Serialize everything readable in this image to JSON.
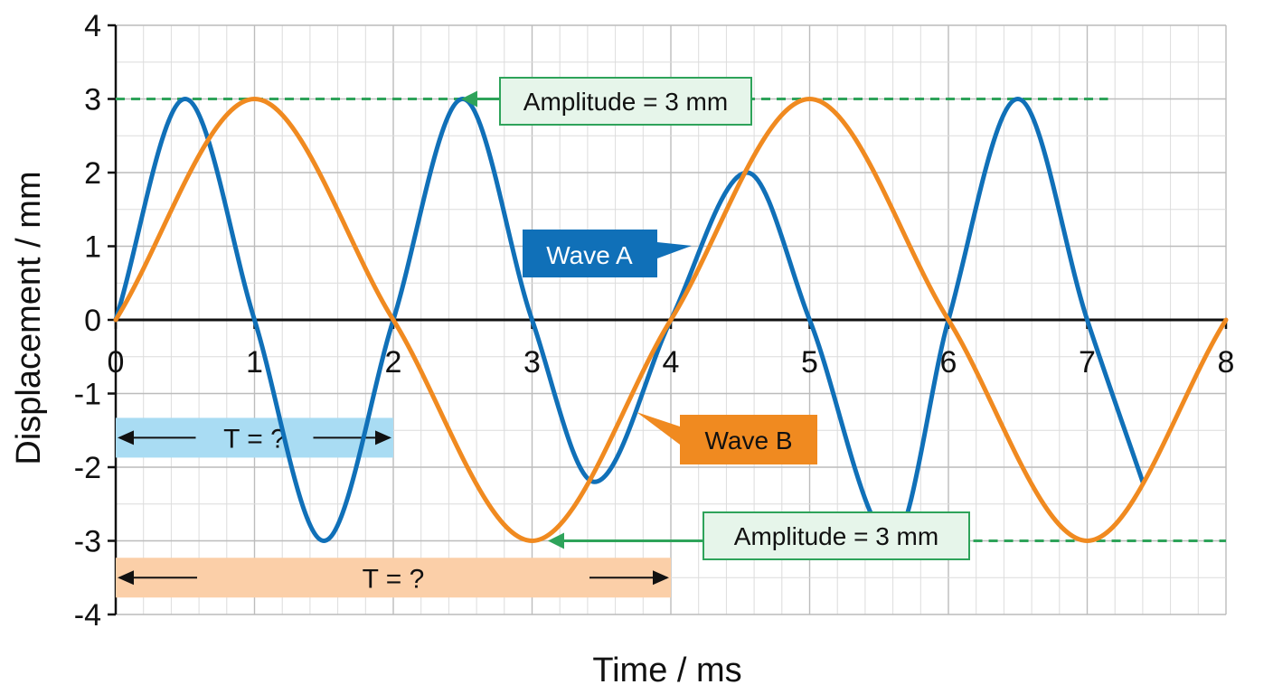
{
  "chart_data": {
    "type": "line",
    "title": "",
    "xlabel": "Time / ms",
    "ylabel": "Displacement / mm",
    "xlim": [
      0,
      8
    ],
    "ylim": [
      -4,
      4
    ],
    "x_ticks": [
      "0",
      "1",
      "2",
      "3",
      "4",
      "5",
      "6",
      "7",
      "8"
    ],
    "y_ticks": [
      "4",
      "3",
      "2",
      "1",
      "0",
      "-1",
      "-2",
      "-3",
      "-4"
    ],
    "grid": true,
    "series": [
      {
        "name": "Wave A",
        "color": "#1070b8",
        "x": [
          0,
          0.5,
          1,
          1.5,
          2,
          2.5,
          3,
          3.45,
          4,
          4.55,
          5,
          5.6,
          6,
          6.5,
          7,
          7.4
        ],
        "y": [
          0,
          3,
          0,
          -3,
          0,
          3,
          0,
          -2.2,
          0,
          2,
          0,
          -3,
          0,
          3,
          0,
          -2.2
        ]
      },
      {
        "name": "Wave B",
        "color": "#f08a20",
        "x": [
          0,
          1,
          2,
          3,
          4,
          5,
          6,
          7,
          8
        ],
        "y": [
          0,
          3,
          0,
          -3,
          0,
          3,
          0,
          -3,
          0
        ]
      }
    ],
    "annotations": {
      "amplitude_top": "Amplitude = 3 mm",
      "amplitude_bottom": "Amplitude = 3 mm",
      "period_a": "T = ?",
      "period_b": "T = ?",
      "period_a_span": [
        0,
        2
      ],
      "period_b_span": [
        0,
        4
      ]
    },
    "colors": {
      "amplitude": "#2ea35a",
      "amplitude_box_fill": "#e6f5ea",
      "period_a_fill": "#a9dcf3",
      "period_b_fill": "#fbcfa8"
    }
  }
}
